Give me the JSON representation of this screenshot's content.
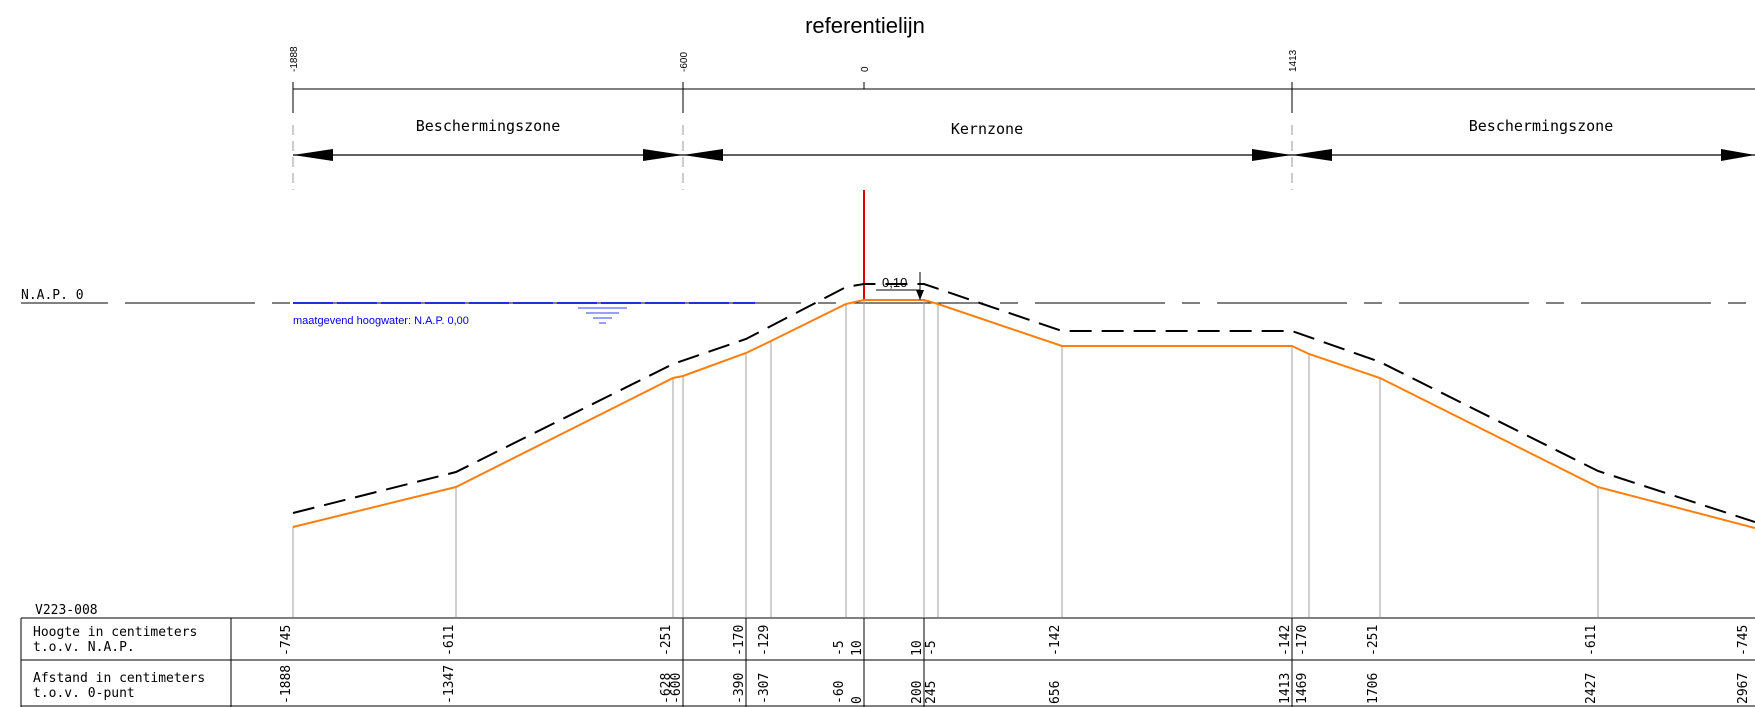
{
  "title": "referentielijn",
  "scale_ticks": [
    "-1888",
    "-600",
    "0",
    "1413"
  ],
  "zones": {
    "left": "Beschermingszone",
    "core": "Kernzone",
    "right": "Beschermingszone"
  },
  "nap_label": "N.A.P. 0",
  "water_label": "maatgevend hoogwater: N.A.P. 0,00",
  "offset_label": "0,10",
  "profile_code": "V223-008",
  "table": {
    "row_height": {
      "label_line1": "Hoogte in centimeters",
      "label_line2": "t.o.v. N.A.P.",
      "values": [
        "-745",
        "-611",
        "-251",
        "-170",
        "-129",
        "-5",
        "10",
        "10",
        "-5",
        "-142",
        "-142",
        "-170",
        "-251",
        "-611",
        "-745"
      ]
    },
    "row_distance": {
      "label_line1": "Afstand in centimeters",
      "label_line2": "t.o.v. 0-punt",
      "values": [
        "-1888",
        "-1347",
        "-628",
        "-600",
        "-390",
        "-307",
        "-60",
        "0",
        "200",
        "245",
        "656",
        "1413",
        "1469",
        "1706",
        "2427",
        "2967"
      ]
    }
  },
  "colors": {
    "profile": "#ff7f0e",
    "reference_line": "#e00000",
    "water": "#0000ee",
    "lines": "#000000",
    "verticals": "#a0a0a0"
  }
}
